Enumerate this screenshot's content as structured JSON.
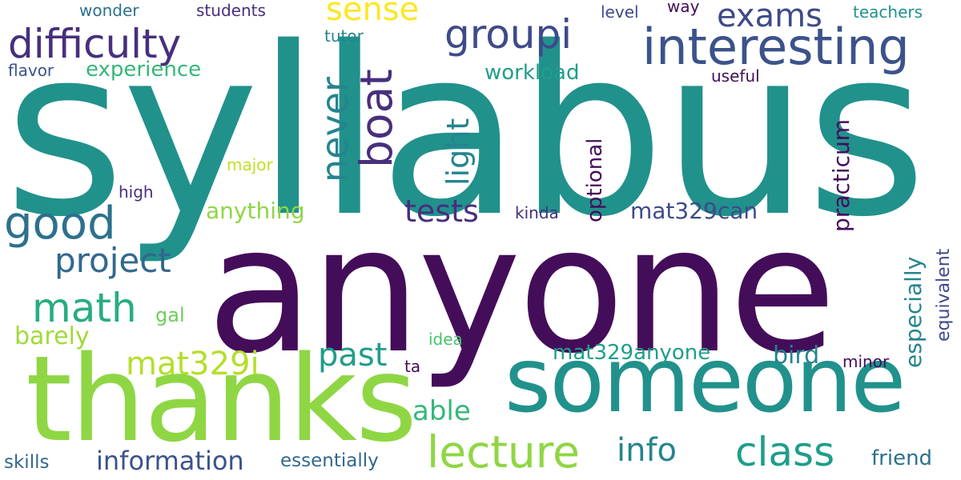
{
  "words": {
    "syllabus": {
      "text": "syllabus",
      "color": "#21918c"
    },
    "anyone": {
      "text": "anyone",
      "color": "#440d5a"
    },
    "thanks": {
      "text": "thanks",
      "color": "#8fd644"
    },
    "someone": {
      "text": "someone",
      "color": "#21918c"
    },
    "interesting": {
      "text": "interesting",
      "color": "#3b528b"
    },
    "difficulty": {
      "text": "difficulty",
      "color": "#472f7d"
    },
    "groupi": {
      "text": "groupi",
      "color": "#3e4a89"
    },
    "good": {
      "text": "good",
      "color": "#2c718e"
    },
    "math": {
      "text": "math",
      "color": "#27ad81"
    },
    "lecture": {
      "text": "lecture",
      "color": "#8fd644"
    },
    "class": {
      "text": "class",
      "color": "#1f9e89"
    },
    "exams": {
      "text": "exams",
      "color": "#3e4a89"
    },
    "sense": {
      "text": "sense",
      "color": "#fde725"
    },
    "project": {
      "text": "project",
      "color": "#31688e"
    },
    "past": {
      "text": "past",
      "color": "#1f9e89"
    },
    "tests": {
      "text": "tests",
      "color": "#472f7d"
    },
    "mat329i": {
      "text": "mat329i",
      "color": "#b5de2b"
    },
    "info": {
      "text": "info",
      "color": "#25848e"
    },
    "able": {
      "text": "able",
      "color": "#35b779"
    },
    "information": {
      "text": "information",
      "color": "#3b528b"
    },
    "mat329can": {
      "text": "mat329can",
      "color": "#3e4a89"
    },
    "anything": {
      "text": "anything",
      "color": "#8fd644"
    },
    "barely": {
      "text": "barely",
      "color": "#a0da39"
    },
    "bird": {
      "text": "bird",
      "color": "#25848e"
    },
    "mat329anyone": {
      "text": "mat329anyone",
      "color": "#1f9e89"
    },
    "experience": {
      "text": "experience",
      "color": "#35b779"
    },
    "workload": {
      "text": "workload",
      "color": "#1f9e89"
    },
    "friend": {
      "text": "friend",
      "color": "#2c718e"
    },
    "essentially": {
      "text": "essentially",
      "color": "#31688e"
    },
    "skills": {
      "text": "skills",
      "color": "#31688e"
    },
    "wonder": {
      "text": "wonder",
      "color": "#2c718e"
    },
    "students": {
      "text": "students",
      "color": "#472f7d"
    },
    "tutor": {
      "text": "tutor",
      "color": "#25848e"
    },
    "level": {
      "text": "level",
      "color": "#3e4a89"
    },
    "way": {
      "text": "way",
      "color": "#440d5a"
    },
    "teachers": {
      "text": "teachers",
      "color": "#21918c"
    },
    "flavor": {
      "text": "flavor",
      "color": "#3b528b"
    },
    "useful": {
      "text": "useful",
      "color": "#440d5a"
    },
    "major": {
      "text": "major",
      "color": "#c2df23"
    },
    "high": {
      "text": "high",
      "color": "#472f7d"
    },
    "kinda": {
      "text": "kinda",
      "color": "#472f7d"
    },
    "gal": {
      "text": "gal",
      "color": "#6ccd5a"
    },
    "idea": {
      "text": "idea",
      "color": "#4ac16d"
    },
    "ta": {
      "text": "ta",
      "color": "#440d5a"
    },
    "minor": {
      "text": "minor",
      "color": "#440d5a"
    },
    "never": {
      "text": "never",
      "color": "#25848e"
    },
    "boat": {
      "text": "boat",
      "color": "#472f7d"
    },
    "light": {
      "text": "light",
      "color": "#25848e"
    },
    "optional": {
      "text": "optional",
      "color": "#440d5a"
    },
    "practicum": {
      "text": "practicum",
      "color": "#440d5a"
    },
    "especially": {
      "text": "especially",
      "color": "#25848e"
    },
    "equivalent": {
      "text": "equivalent",
      "color": "#3e4a89"
    }
  }
}
